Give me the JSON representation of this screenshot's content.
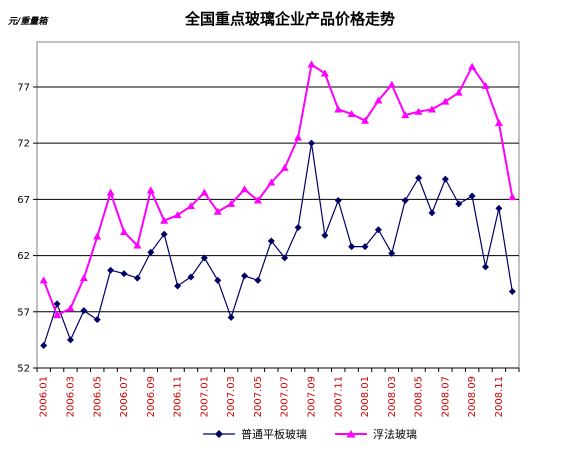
{
  "chart_data": {
    "type": "line",
    "title": "全国重点玻璃企业产品价格走势",
    "ylabel": "元/重量箱",
    "xlabel": "",
    "ylim": [
      52,
      81
    ],
    "yticks": [
      52,
      57,
      62,
      67,
      72,
      77
    ],
    "grid": true,
    "legend_position": "bottom",
    "x_tick_labels": [
      "2006.01",
      "2006.03",
      "2006.05",
      "2006.07",
      "2006.09",
      "2006.11",
      "2007.01",
      "2007.03",
      "2007.05",
      "2007.07",
      "2007.09",
      "2007.11",
      "2008.01",
      "2008.03",
      "2008.05",
      "2008.07",
      "2008.09",
      "2008.11"
    ],
    "x_tick_color": "#cc0000",
    "series": [
      {
        "name": "普通平板玻璃",
        "color": "#000066",
        "marker": "diamond",
        "values": [
          54.0,
          57.7,
          54.5,
          57.1,
          56.3,
          60.7,
          60.4,
          60.0,
          62.3,
          63.9,
          59.3,
          60.1,
          61.8,
          59.8,
          56.5,
          60.2,
          59.8,
          63.3,
          61.8,
          64.5,
          72.0,
          63.8,
          66.9,
          62.8,
          62.8,
          64.3,
          62.2,
          66.9,
          68.9,
          65.8,
          68.8,
          66.6,
          67.3,
          61.0,
          66.2,
          58.8
        ]
      },
      {
        "name": "浮法玻璃",
        "color": "#ff00ff",
        "marker": "triangle",
        "values": [
          59.8,
          56.7,
          57.3,
          60.0,
          63.7,
          67.6,
          64.1,
          62.9,
          67.8,
          65.1,
          65.6,
          66.4,
          67.6,
          65.9,
          66.6,
          67.9,
          66.9,
          68.5,
          69.8,
          72.5,
          79.0,
          78.2,
          75.0,
          74.6,
          74.0,
          75.8,
          77.2,
          74.5,
          74.8,
          75.0,
          75.7,
          76.5,
          78.8,
          77.1,
          73.8,
          67.2
        ]
      }
    ]
  }
}
